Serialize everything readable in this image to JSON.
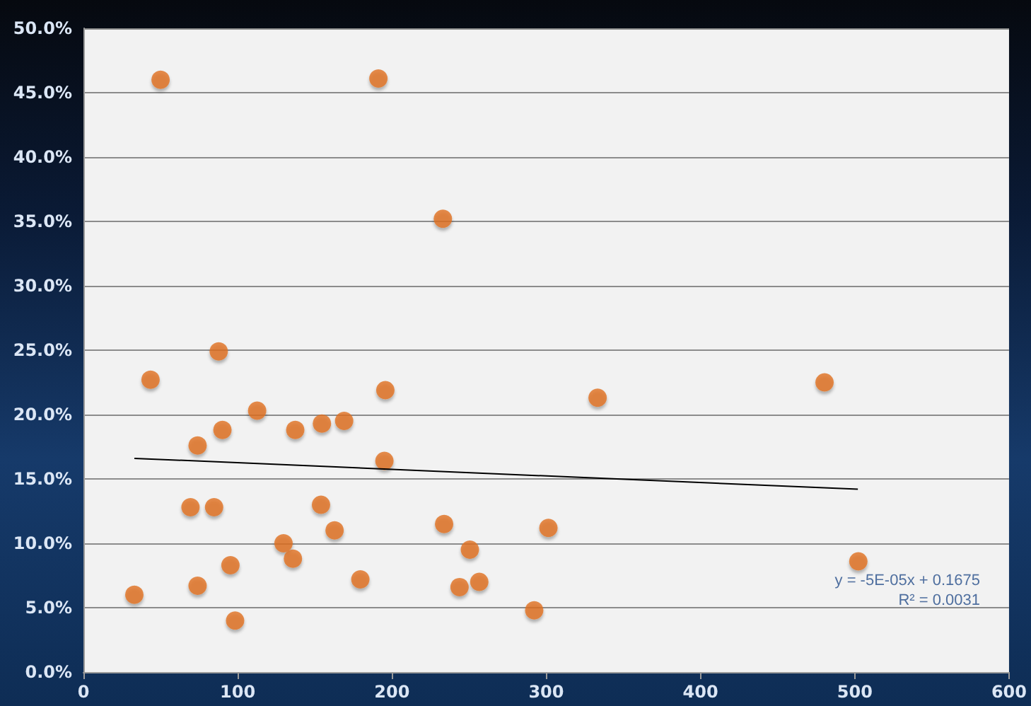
{
  "chart_data": {
    "type": "scatter",
    "marker": "circle",
    "grid": "y",
    "xlim": [
      0,
      600
    ],
    "xticks": [
      0,
      100,
      200,
      300,
      400,
      500,
      600
    ],
    "ylim": [
      0,
      0.5
    ],
    "yticks": [
      {
        "value": 0,
        "label": "0.0%"
      },
      {
        "value": 0.05,
        "label": "5.0%"
      },
      {
        "value": 0.1,
        "label": "10.0%"
      },
      {
        "value": 0.15,
        "label": "15.0%"
      },
      {
        "value": 0.2,
        "label": "20.0%"
      },
      {
        "value": 0.25,
        "label": "25.0%"
      },
      {
        "value": 0.3,
        "label": "30.0%"
      },
      {
        "value": 0.35,
        "label": "35.0%"
      },
      {
        "value": 0.4,
        "label": "40.0%"
      },
      {
        "value": 0.45,
        "label": "45.0%"
      },
      {
        "value": 0.5,
        "label": "50.0%"
      }
    ],
    "series": [
      {
        "color": "#e07020",
        "x": [
          33,
          43.5,
          50,
          87.7,
          112.6,
          74,
          90.1,
          137.3,
          154.6,
          169,
          195.7,
          195.1,
          69.4,
          84.7,
          154,
          162.8,
          129.7,
          135.8,
          95.3,
          74,
          98.3,
          179.5,
          233.8,
          250.5,
          243.8,
          256.6,
          292.2,
          301.4,
          333.3,
          480.4,
          502.3,
          191.2,
          233
        ],
        "values": [
          0.06,
          0.227,
          0.46,
          0.249,
          0.203,
          0.176,
          0.188,
          0.188,
          0.193,
          0.195,
          0.219,
          0.164,
          0.128,
          0.128,
          0.13,
          0.11,
          0.1,
          0.088,
          0.083,
          0.067,
          0.04,
          0.072,
          0.115,
          0.095,
          0.066,
          0.07,
          0.048,
          0.112,
          0.213,
          0.225,
          0.086,
          0.461,
          0.352
        ]
      },
      {
        "type": "line",
        "color": "#000000",
        "marker": "none",
        "x": [
          33,
          502
        ],
        "values": [
          0.166,
          0.142
        ]
      }
    ],
    "annotations": [
      "y = -5E-05x + 0.1675",
      "R² = 0.0031"
    ]
  }
}
